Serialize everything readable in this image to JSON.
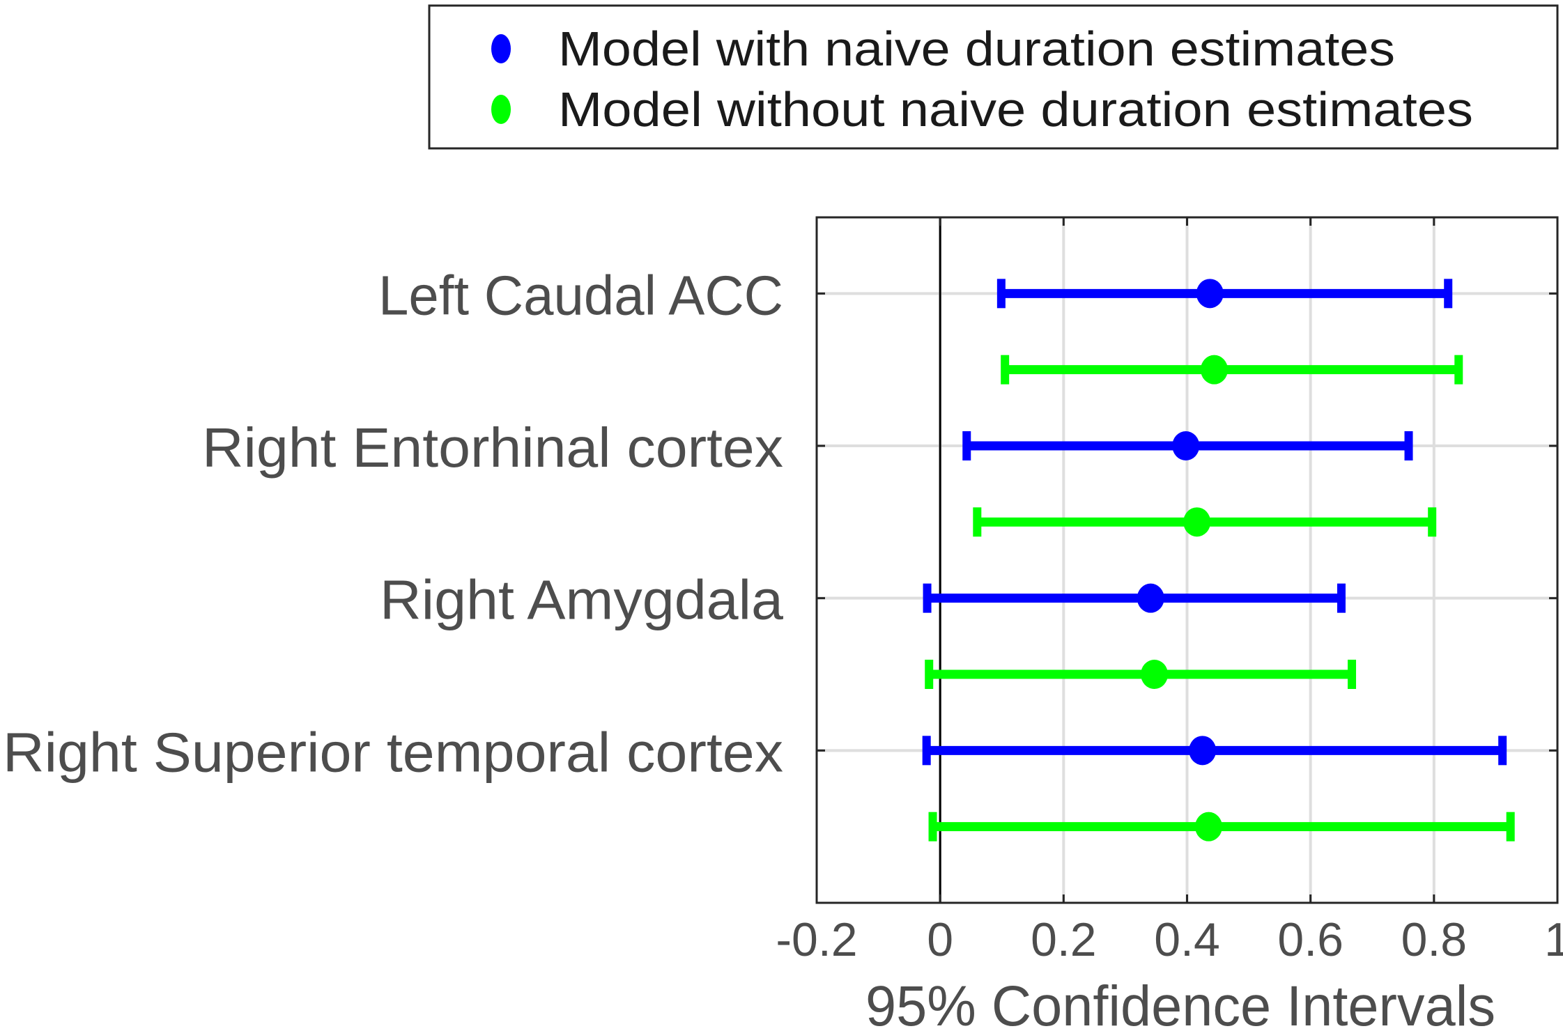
{
  "chart_data": {
    "type": "errorbar",
    "orientation": "horizontal",
    "title": "",
    "xlabel": "95% Confidence Intervals",
    "ylabel": "",
    "xlim": [
      -0.2,
      1.0
    ],
    "xticks": [
      -0.2,
      0,
      0.2,
      0.4,
      0.6,
      0.8,
      1
    ],
    "xtick_labels": [
      "-0.2",
      "0",
      "0.2",
      "0.4",
      "0.6",
      "0.8",
      "1"
    ],
    "grid": true,
    "zero_line": 0,
    "categories": [
      "Left Caudal ACC",
      "Right Entorhinal cortex",
      "Right Amygdala",
      "Right Superior temporal cortex"
    ],
    "legend": {
      "placement": "top",
      "entries": [
        {
          "label": "Model with naive duration estimates",
          "color": "#0000ff"
        },
        {
          "label": "Model without naive duration estimates",
          "color": "#00ff00"
        }
      ]
    },
    "series": [
      {
        "name": "Model with naive duration estimates",
        "color": "#0000ff",
        "estimate": [
          0.437,
          0.398,
          0.341,
          0.425
        ],
        "lower": [
          0.099,
          0.043,
          -0.021,
          -0.022
        ],
        "upper": [
          0.823,
          0.759,
          0.65,
          0.911
        ]
      },
      {
        "name": "Model without naive duration estimates",
        "color": "#00ff00",
        "estimate": [
          0.444,
          0.416,
          0.347,
          0.435
        ],
        "lower": [
          0.105,
          0.06,
          -0.018,
          -0.012
        ],
        "upper": [
          0.84,
          0.797,
          0.667,
          0.924
        ]
      }
    ]
  }
}
